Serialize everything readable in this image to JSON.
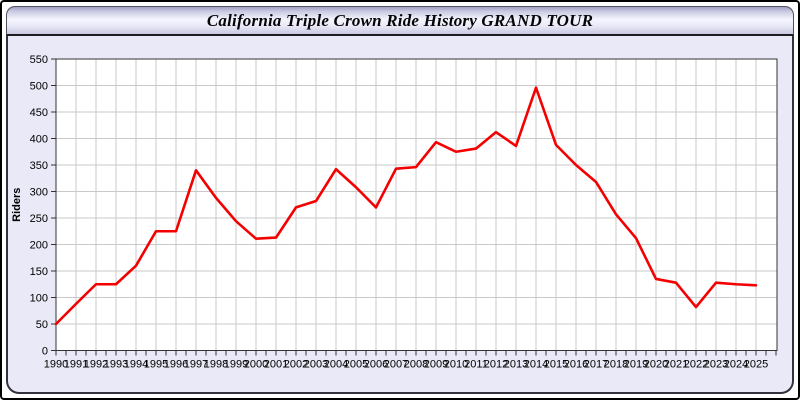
{
  "header": {
    "title": "California Triple Crown Ride History GRAND TOUR"
  },
  "colors": {
    "line": "#f40000",
    "panel_bg": "#e9e9f7",
    "plot_bg": "#ffffff",
    "grid": "#c9c9c9",
    "frame": "#333333",
    "tick": "#333333",
    "label_text": "#000000"
  },
  "chart_data": {
    "type": "line",
    "title": "California Triple Crown Ride History GRAND TOUR",
    "xlabel": "",
    "ylabel": "Riders",
    "ylim": [
      0,
      550
    ],
    "ytick_step": 50,
    "grid": true,
    "legend": false,
    "x": [
      1990,
      1991,
      1992,
      1993,
      1994,
      1995,
      1996,
      1997,
      1998,
      1999,
      2000,
      2001,
      2002,
      2003,
      2004,
      2005,
      2006,
      2007,
      2008,
      2009,
      2010,
      2011,
      2012,
      2013,
      2014,
      2015,
      2016,
      2017,
      2018,
      2019,
      2020,
      2021,
      2022,
      2023,
      2024,
      2025
    ],
    "series": [
      {
        "name": "Riders",
        "values": [
          50,
          88,
          125,
          125,
          160,
          225,
          225,
          340,
          288,
          244,
          211,
          213,
          270,
          282,
          342,
          308,
          270,
          343,
          346,
          393,
          375,
          381,
          412,
          386,
          496,
          388,
          350,
          318,
          257,
          212,
          135,
          128,
          82,
          128,
          125,
          123
        ]
      }
    ]
  }
}
